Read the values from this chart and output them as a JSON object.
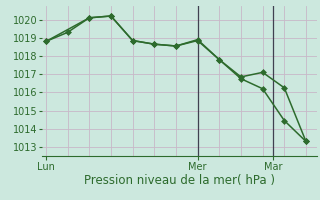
{
  "line1_x": [
    0,
    1,
    2,
    3,
    4,
    5,
    6,
    7,
    8,
    9,
    10,
    11,
    12
  ],
  "line1_y": [
    1018.8,
    1019.3,
    1020.1,
    1020.2,
    1018.85,
    1018.65,
    1018.55,
    1018.85,
    1017.8,
    1016.75,
    1016.2,
    1014.45,
    1013.3
  ],
  "line2_x": [
    0,
    2,
    3,
    4,
    5,
    6,
    7,
    8,
    9,
    10,
    11,
    12
  ],
  "line2_y": [
    1018.8,
    1020.1,
    1020.2,
    1018.85,
    1018.65,
    1018.55,
    1018.9,
    1017.8,
    1016.85,
    1017.1,
    1016.25,
    1013.3
  ],
  "line_color": "#2d6b2d",
  "bg_color": "#cce8de",
  "grid_color_h": "#c8b8c8",
  "grid_color_v": "#c8b8c8",
  "vline_color": "#404050",
  "ylabel_ticks": [
    1013,
    1014,
    1015,
    1016,
    1017,
    1018,
    1019,
    1020
  ],
  "ylim": [
    1012.5,
    1020.75
  ],
  "xlabel": "Pression niveau de la mer( hPa )",
  "xtick_positions": [
    0,
    7,
    10.5
  ],
  "xtick_labels": [
    "Lun",
    "Mer",
    "Mar"
  ],
  "vline_positions": [
    7,
    10.5
  ],
  "xlim": [
    -0.2,
    12.5
  ],
  "marker": "D",
  "markersize": 3.0,
  "linewidth": 1.1,
  "font_color": "#2d6b2d",
  "xlabel_fontsize": 8.5,
  "tick_fontsize": 7.0,
  "grid_yticks": [
    1013,
    1014,
    1015,
    1016,
    1017,
    1018,
    1019,
    1020
  ],
  "grid_xticks": [
    0,
    1,
    2,
    3,
    4,
    5,
    6,
    7,
    8,
    9,
    10,
    11,
    12
  ]
}
